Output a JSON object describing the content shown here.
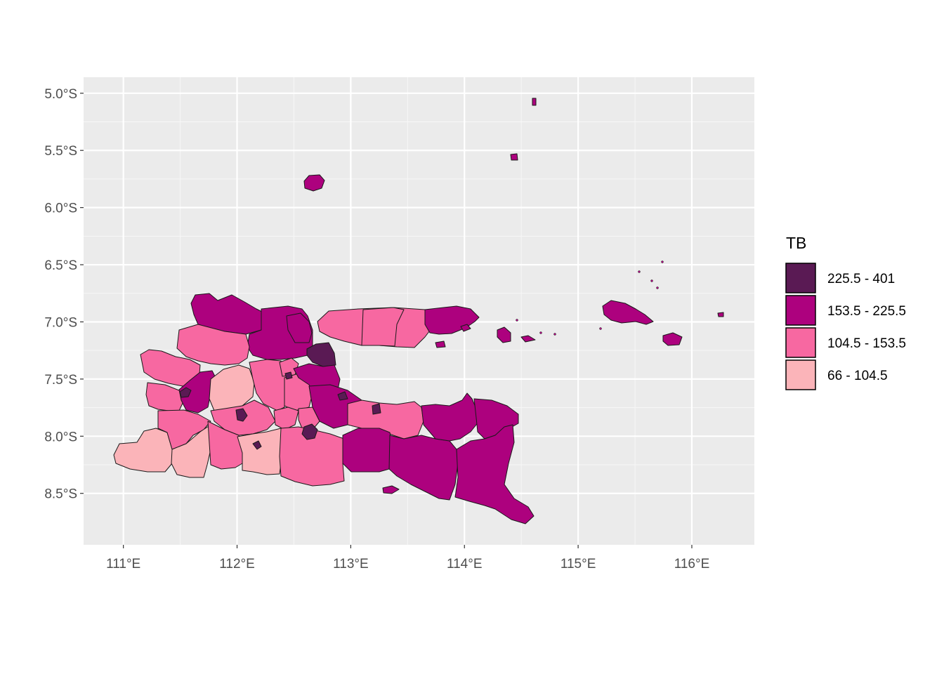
{
  "chart_data": {
    "type": "choropleth",
    "x_axis": {
      "ticks": [
        111,
        112,
        113,
        114,
        115,
        116
      ],
      "tick_labels": [
        "111°E",
        "112°E",
        "113°E",
        "114°E",
        "115°E",
        "116°E"
      ],
      "range": [
        110.65,
        116.55
      ]
    },
    "y_axis": {
      "ticks": [
        -5.0,
        -5.5,
        -6.0,
        -6.5,
        -7.0,
        -7.5,
        -8.0,
        -8.5
      ],
      "tick_labels": [
        "5.0°S",
        "5.5°S",
        "6.0°S",
        "6.5°S",
        "7.0°S",
        "7.5°S",
        "8.0°S",
        "8.5°S"
      ],
      "range": [
        -8.95,
        -4.86
      ]
    },
    "grid": true,
    "legend": {
      "title": "TB",
      "position": "right",
      "classes": [
        {
          "label": "225.5 - 401",
          "color": "#5a1a54"
        },
        {
          "label": "153.5 - 225.5",
          "color": "#ad017e"
        },
        {
          "label": "104.5 - 153.5",
          "color": "#f768a1"
        },
        {
          "label": "66 - 104.5",
          "color": "#fbb4b9"
        }
      ]
    }
  }
}
